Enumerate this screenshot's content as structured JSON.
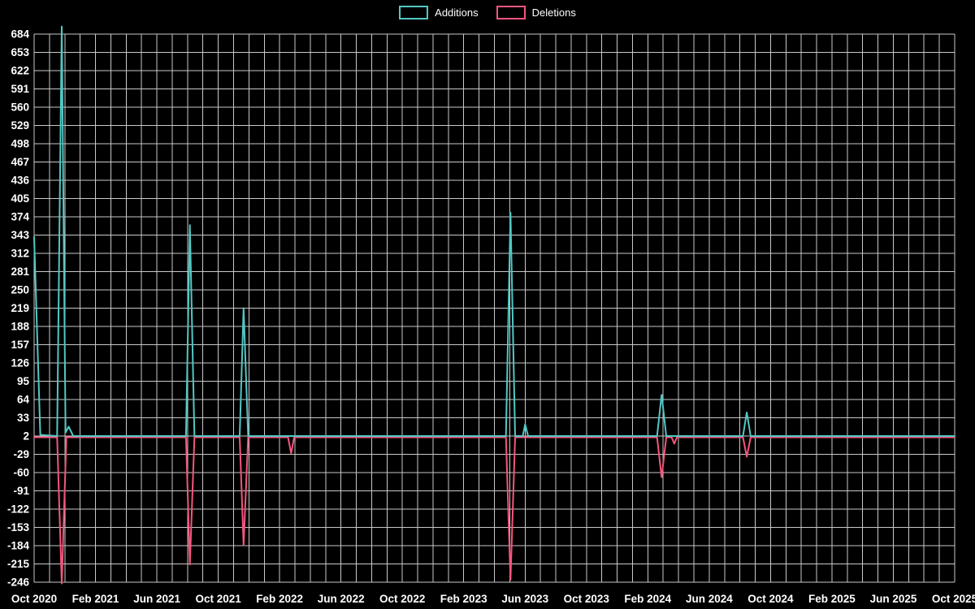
{
  "chart_data": {
    "type": "line",
    "title": "",
    "xlabel": "",
    "ylabel": "",
    "background": "#000000",
    "grid_color": "#c9c9c9",
    "text_color": "#ffffff",
    "legend": {
      "position": "top",
      "items": [
        "Additions",
        "Deletions"
      ]
    },
    "axis": {
      "grid": true,
      "ylim": [
        -246,
        684
      ],
      "y_ticks": [
        684,
        653,
        622,
        591,
        560,
        529,
        498,
        467,
        436,
        405,
        374,
        343,
        312,
        281,
        250,
        219,
        188,
        157,
        126,
        95,
        64,
        33,
        2,
        -29,
        -60,
        -91,
        -122,
        -153,
        -184,
        -215,
        -246
      ],
      "x_months": 60,
      "x_tick_interval_months": 4,
      "x_ticks": [
        "Oct 2020",
        "Feb 2021",
        "Jun 2021",
        "Oct 2021",
        "Feb 2022",
        "Jun 2022",
        "Oct 2022",
        "Feb 2023",
        "Jun 2023",
        "Oct 2023",
        "Feb 2024",
        "Jun 2024",
        "Oct 2024",
        "Feb 2025",
        "Jun 2025",
        "Oct 2025"
      ]
    },
    "series": [
      {
        "name": "Additions",
        "color": "#52c8c4",
        "points": [
          [
            0,
            340
          ],
          [
            0.4,
            4
          ],
          [
            1.5,
            2
          ],
          [
            1.8,
            697
          ],
          [
            2.05,
            8
          ],
          [
            2.25,
            18
          ],
          [
            2.55,
            2
          ],
          [
            9.9,
            2
          ],
          [
            10.15,
            360
          ],
          [
            10.45,
            2
          ],
          [
            13.4,
            2
          ],
          [
            13.65,
            219
          ],
          [
            13.95,
            2
          ],
          [
            16.55,
            2
          ],
          [
            16.95,
            2
          ],
          [
            30.75,
            2
          ],
          [
            31.05,
            381
          ],
          [
            31.35,
            2
          ],
          [
            31.85,
            2
          ],
          [
            32.0,
            22
          ],
          [
            32.2,
            2
          ],
          [
            40.6,
            2
          ],
          [
            40.9,
            72
          ],
          [
            41.2,
            2
          ],
          [
            46.2,
            2
          ],
          [
            46.45,
            42
          ],
          [
            46.7,
            2
          ],
          [
            60,
            2
          ]
        ]
      },
      {
        "name": "Deletions",
        "color": "#f4567d",
        "points": [
          [
            0,
            0
          ],
          [
            1.5,
            0
          ],
          [
            1.8,
            -248
          ],
          [
            2.1,
            0
          ],
          [
            9.9,
            0
          ],
          [
            10.15,
            -216
          ],
          [
            10.45,
            0
          ],
          [
            13.4,
            0
          ],
          [
            13.65,
            -183
          ],
          [
            13.95,
            0
          ],
          [
            16.55,
            0
          ],
          [
            16.75,
            -27
          ],
          [
            16.95,
            0
          ],
          [
            30.75,
            0
          ],
          [
            31.05,
            -242
          ],
          [
            31.35,
            0
          ],
          [
            40.6,
            0
          ],
          [
            40.9,
            -68
          ],
          [
            41.2,
            0
          ],
          [
            41.55,
            0
          ],
          [
            41.72,
            -11
          ],
          [
            41.9,
            0
          ],
          [
            46.2,
            0
          ],
          [
            46.45,
            -33
          ],
          [
            46.7,
            0
          ],
          [
            60,
            0
          ]
        ]
      }
    ]
  }
}
